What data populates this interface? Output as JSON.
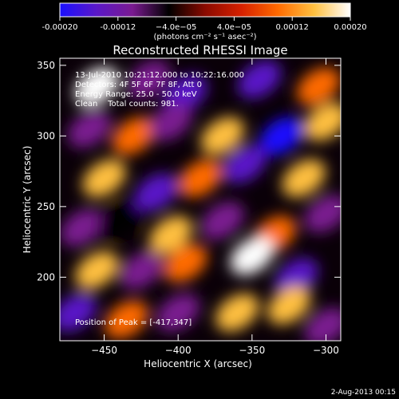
{
  "chart_data": {
    "type": "heatmap",
    "title": "Reconstructed RHESSI Image",
    "xlabel": "Heliocentric X (arcsec)",
    "ylabel": "Heliocentric Y (arcsec)",
    "xlim": [
      -480,
      -290
    ],
    "ylim": [
      155,
      355
    ],
    "x_ticks": [
      -450,
      -400,
      -350,
      -300
    ],
    "x_tick_labels": [
      "−450",
      "−400",
      "−350",
      "−300"
    ],
    "y_ticks": [
      200,
      250,
      300,
      350
    ],
    "y_tick_labels": [
      "200",
      "250",
      "300",
      "350"
    ],
    "colorbar": {
      "range": [
        -0.0002,
        0.0002
      ],
      "ticks": [
        -0.0002,
        -0.00012,
        -4e-05,
        4e-05,
        0.00012,
        0.0002
      ],
      "tick_labels": [
        "-0.00020",
        "-0.00012",
        "−4.0e−05",
        "4.0e−05",
        "0.00012",
        "0.00020"
      ],
      "unit_label": "(photons cm⁻² s⁻¹ asec⁻²)",
      "colors": [
        "#1a10ff",
        "#5a18c8",
        "#7a1a90",
        "#000000",
        "#8a0a00",
        "#d62000",
        "#ff6a00",
        "#ffc040",
        "#ffffff"
      ]
    },
    "annotations": {
      "line1": "13-Jul-2010 10:21:12.000 to 10:22:16.000",
      "line2": "Detectors: 4F 5F 6F 7F 8F, Att 0",
      "line3": "Energy Range: 25.0 - 50.0 keV",
      "line4": "Clean    Total counts: 981.",
      "peak": "Position of Peak = [-417,347]"
    },
    "blobs": [
      {
        "x": -455,
        "y": 335,
        "v": 0.00018
      },
      {
        "x": -420,
        "y": 340,
        "v": -0.00012
      },
      {
        "x": -395,
        "y": 330,
        "v": -0.00016
      },
      {
        "x": -345,
        "y": 340,
        "v": -0.00014
      },
      {
        "x": -305,
        "y": 335,
        "v": 0.00012
      },
      {
        "x": -460,
        "y": 305,
        "v": -8e-05
      },
      {
        "x": -430,
        "y": 300,
        "v": 0.00012
      },
      {
        "x": -405,
        "y": 310,
        "v": -8e-05
      },
      {
        "x": -370,
        "y": 300,
        "v": 0.00014
      },
      {
        "x": -330,
        "y": 300,
        "v": -0.00018
      },
      {
        "x": -300,
        "y": 310,
        "v": 0.00016
      },
      {
        "x": -450,
        "y": 270,
        "v": 0.00014
      },
      {
        "x": -415,
        "y": 260,
        "v": -0.00014
      },
      {
        "x": -385,
        "y": 270,
        "v": 0.00012
      },
      {
        "x": -355,
        "y": 280,
        "v": -0.00016
      },
      {
        "x": -315,
        "y": 270,
        "v": 0.00014
      },
      {
        "x": -465,
        "y": 235,
        "v": -0.0001
      },
      {
        "x": -440,
        "y": 240,
        "v": -6e-05
      },
      {
        "x": -405,
        "y": 230,
        "v": 0.00014
      },
      {
        "x": -370,
        "y": 240,
        "v": -0.00012
      },
      {
        "x": -335,
        "y": 230,
        "v": 0.00012
      },
      {
        "x": -300,
        "y": 245,
        "v": -0.0001
      },
      {
        "x": -455,
        "y": 205,
        "v": 0.00016
      },
      {
        "x": -425,
        "y": 205,
        "v": -0.0001
      },
      {
        "x": -395,
        "y": 210,
        "v": 0.00012
      },
      {
        "x": -350,
        "y": 215,
        "v": 0.00018
      },
      {
        "x": -320,
        "y": 200,
        "v": -0.00014
      },
      {
        "x": -470,
        "y": 175,
        "v": -0.00014
      },
      {
        "x": -435,
        "y": 170,
        "v": 0.0001
      },
      {
        "x": -400,
        "y": 175,
        "v": -0.0001
      },
      {
        "x": -360,
        "y": 175,
        "v": 0.00016
      },
      {
        "x": -325,
        "y": 180,
        "v": 0.00016
      },
      {
        "x": -300,
        "y": 165,
        "v": -0.00012
      }
    ]
  },
  "footer": {
    "date": "2-Aug-2013 00:15"
  }
}
